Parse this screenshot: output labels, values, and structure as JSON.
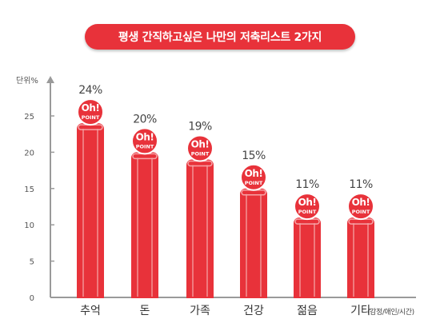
{
  "title": "평생 간직하고싶은 나만의 저축리스트 2가지",
  "unit": "단위%",
  "note": "(감정/애인/시간)",
  "badge": {
    "line1": "Oh!",
    "line2": "POINT"
  },
  "colors": {
    "accent": "#e8323a",
    "bar_light": "#f07a7e",
    "axis": "#9a9a9a"
  },
  "chart_data": {
    "type": "bar",
    "title": "평생 간직하고싶은 나만의 저축리스트 2가지",
    "ylabel": "단위%",
    "categories": [
      "추억",
      "돈",
      "가족",
      "건강",
      "젊음",
      "기타"
    ],
    "values": [
      24,
      20,
      19,
      15,
      11,
      11
    ],
    "value_labels": [
      "24%",
      "20%",
      "19%",
      "15%",
      "11%",
      "11%"
    ],
    "yticks": [
      0,
      5,
      10,
      15,
      20,
      25
    ],
    "ylim": [
      0,
      30
    ],
    "grid": false,
    "legend": "none"
  }
}
